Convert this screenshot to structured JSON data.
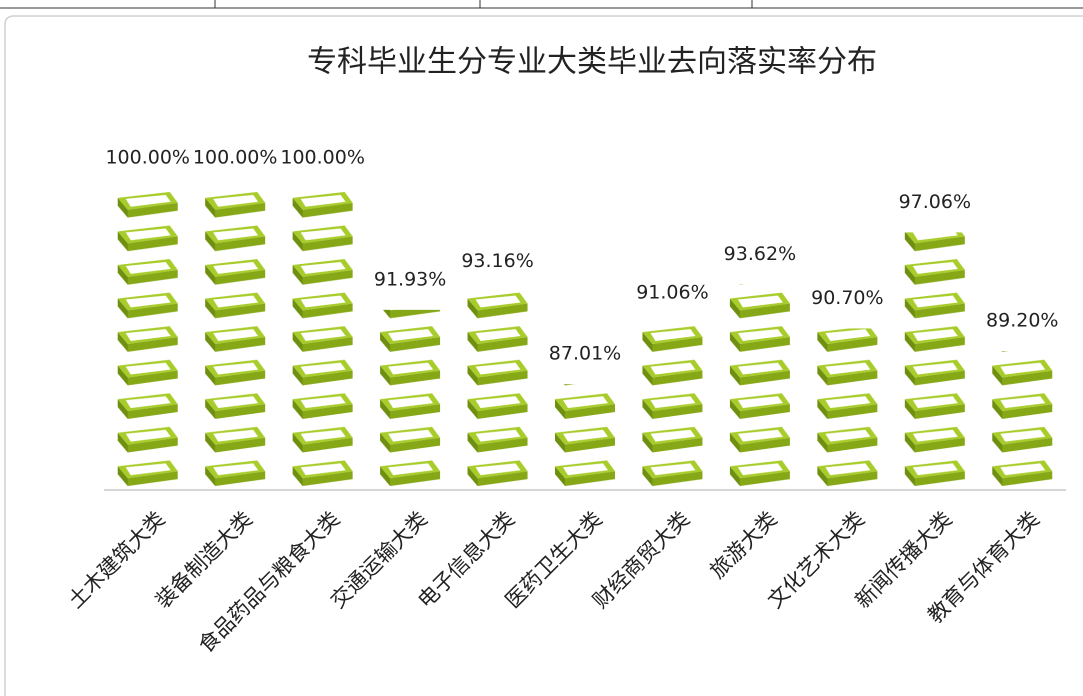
{
  "chart_data": {
    "type": "pictograph",
    "title": "专科毕业生分专业大类毕业去向落实率分布",
    "categories": [
      "土木建筑大类",
      "装备制造大类",
      "食品药品与粮食大类",
      "交通运输大类",
      "电子信息大类",
      "医药卫生大类",
      "财经商贸大类",
      "旅游大类",
      "文化艺术大类",
      "新闻传播大类",
      "教育与体育大类"
    ],
    "values": [
      100,
      100,
      100,
      91.93,
      93.16,
      87.01,
      91.06,
      93.62,
      90.7,
      97.06,
      89.2
    ],
    "value_labels": [
      "100.00%",
      "100.00%",
      "100.00%",
      "91.93%",
      "93.16%",
      "87.01%",
      "91.06%",
      "93.62%",
      "90.70%",
      "97.06%",
      "89.20%"
    ],
    "color": "#a8cc2a",
    "ylim": [
      80,
      100
    ]
  }
}
